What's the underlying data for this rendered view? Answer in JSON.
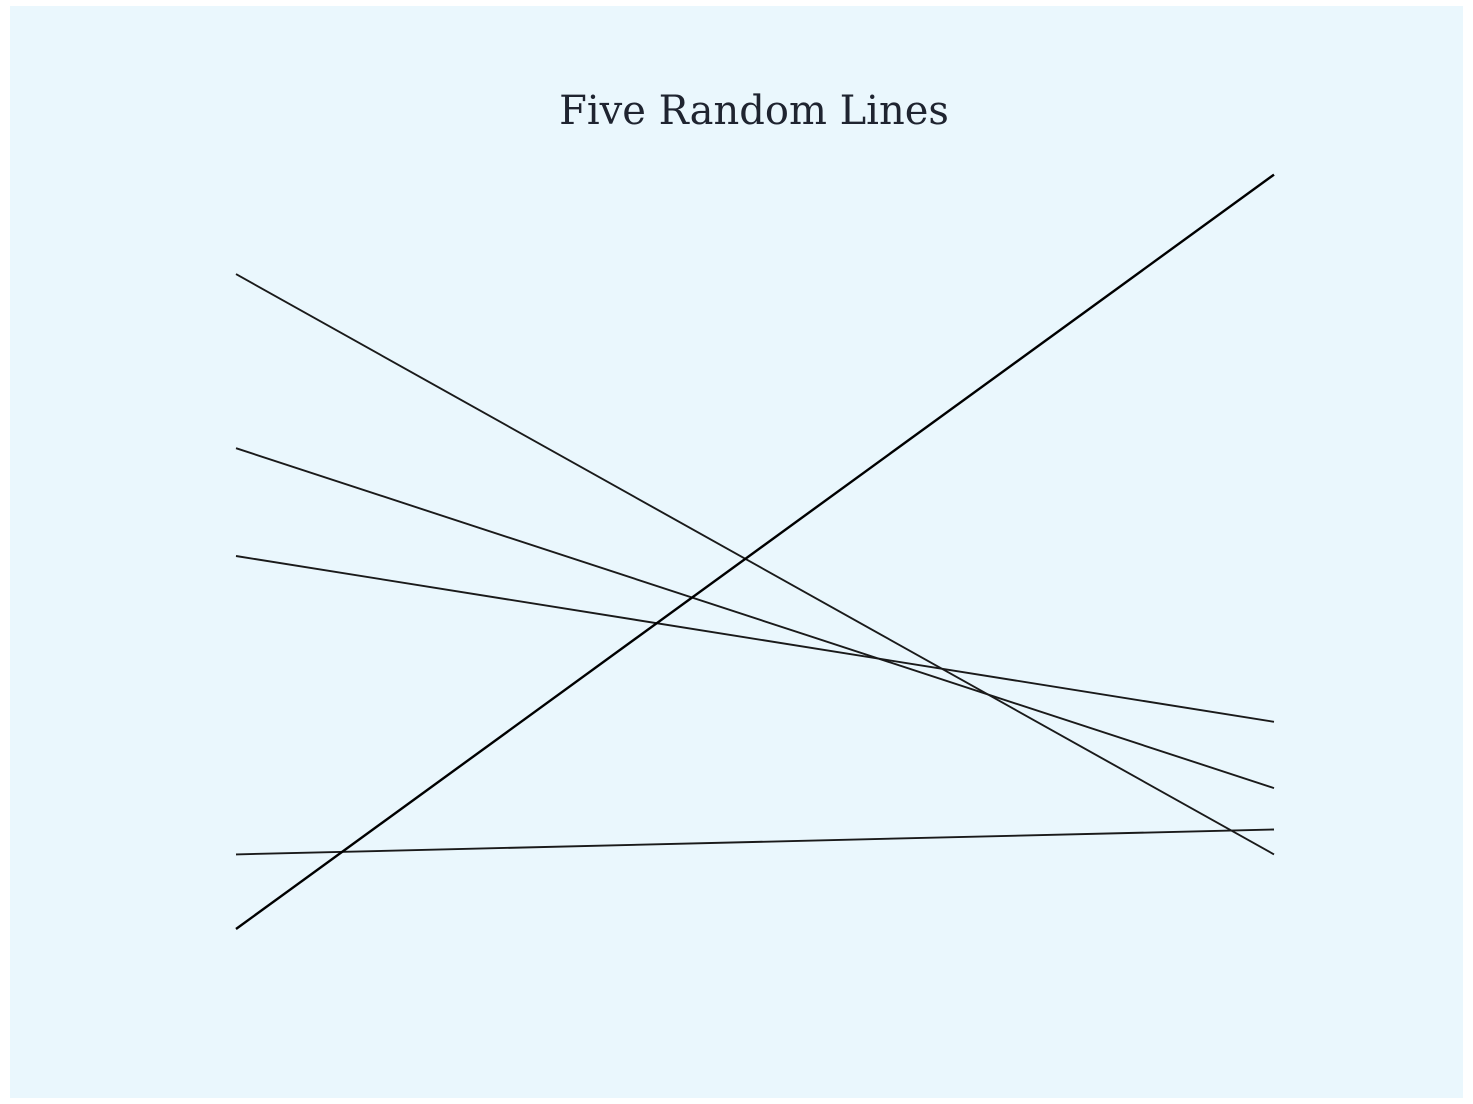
{
  "chart_data": {
    "type": "line",
    "title": "Five Random Lines",
    "xlabel": "",
    "ylabel": "",
    "xlim": [
      0,
      1
    ],
    "ylim": [
      0,
      1
    ],
    "axes_visible": false,
    "grid": false,
    "legend": "none",
    "background_color": "#eaf7fd",
    "series": [
      {
        "x": [
          0,
          1
        ],
        "y": [
          0.79,
          0.09
        ],
        "color": "#1a1a1a"
      },
      {
        "x": [
          0,
          1
        ],
        "y": [
          0.58,
          0.17
        ],
        "color": "#1a1a1a"
      },
      {
        "x": [
          0,
          1
        ],
        "y": [
          0.45,
          0.25
        ],
        "color": "#1a1a1a"
      },
      {
        "x": [
          0,
          1
        ],
        "y": [
          0.09,
          0.12
        ],
        "color": "#1a1a1a"
      },
      {
        "x": [
          0,
          1
        ],
        "y": [
          0.0,
          0.91
        ],
        "color": "#000000"
      }
    ]
  }
}
